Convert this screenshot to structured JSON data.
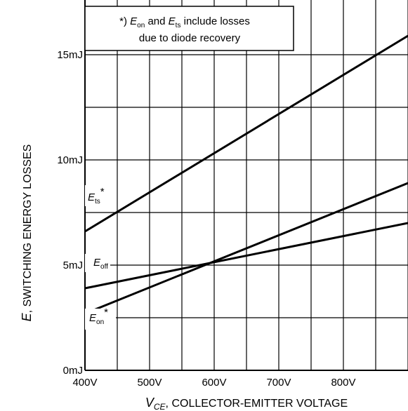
{
  "chart_data": {
    "type": "line",
    "x_unit": "V",
    "x_ticks": [
      400,
      500,
      600,
      700,
      800
    ],
    "x_tick_labels": [
      "400V",
      "500V",
      "600V",
      "700V",
      "800V"
    ],
    "x_range": [
      400,
      900
    ],
    "y_ticks": [
      0,
      5,
      10,
      15
    ],
    "y_tick_labels": [
      "0mJ",
      "5mJ",
      "10mJ",
      "15mJ"
    ],
    "y_range": [
      0,
      17.6
    ],
    "xlabel_symbol": "V",
    "xlabel_symbol_sub": "CE",
    "xlabel_text": ", COLLECTOR-EMITTER VOLTAGE",
    "ylabel_symbol": "E",
    "ylabel_text": ", SWITCHING ENERGY LOSSES",
    "grid": true,
    "series": [
      {
        "name": "Ets*",
        "label_main": "E",
        "label_sub": "ts",
        "label_suffix": "*",
        "x": [
          400,
          900
        ],
        "y": [
          6.6,
          15.9
        ]
      },
      {
        "name": "Eoff",
        "label_main": "E",
        "label_sub": "off",
        "label_suffix": "",
        "x": [
          400,
          900
        ],
        "y": [
          3.9,
          7.0
        ]
      },
      {
        "name": "Eon*",
        "label_main": "E",
        "label_sub": "on",
        "label_suffix": "*",
        "x": [
          400,
          900
        ],
        "y": [
          2.7,
          8.9
        ]
      }
    ],
    "note": {
      "line1_prefix": "*) ",
      "line1_e1": "E",
      "line1_sub1": "on",
      "line1_and": " and ",
      "line1_e2": "E",
      "line1_sub2": "ts",
      "line1_suffix": " include losses",
      "line2": "due to diode recovery"
    }
  }
}
